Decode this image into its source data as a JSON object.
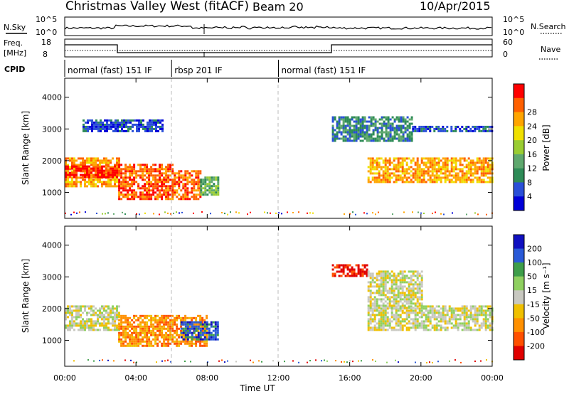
{
  "header": {
    "title": "Christmas Valley West (fitACF)",
    "beam": "Beam 20",
    "date": "10/Apr/2015"
  },
  "strips": {
    "nsky": {
      "label": "N.Sky",
      "tick_top": "10^5",
      "tick_bottom": "10^0"
    },
    "nsearch": {
      "label": "N.Search",
      "tick_top": "10^5",
      "tick_bottom": "10^0"
    },
    "freq": {
      "label1": "Freq.",
      "label2": "[MHz]",
      "tick_top": "18",
      "tick_bottom": "8"
    },
    "nave": {
      "label": "Nave",
      "tick_top": "60",
      "tick_bottom": "0"
    },
    "cpid": {
      "label": "CPID"
    }
  },
  "cpid_segments": [
    {
      "start_hour": 0.0,
      "end_hour": 6.0,
      "label": "normal (fast) 151 IF"
    },
    {
      "start_hour": 6.0,
      "end_hour": 12.0,
      "label": "rbsp 201 IF"
    },
    {
      "start_hour": 12.0,
      "end_hour": 24.0,
      "label": "normal (fast) 151 IF"
    }
  ],
  "power_colorbar": {
    "label": "Power [dB]",
    "ticks": [
      "4",
      "8",
      "12",
      "16",
      "20",
      "24",
      "28"
    ],
    "colors": [
      "#0000d8",
      "#2a4fd8",
      "#2e8b57",
      "#5fa86e",
      "#9acd32",
      "#f0e000",
      "#ffa500",
      "#ff6000",
      "#ff0000"
    ]
  },
  "velocity_colorbar": {
    "label": "Velocity [m s⁻¹]",
    "ticks": [
      "200",
      "100",
      "50",
      "15",
      "-15",
      "-50",
      "-100",
      "-200"
    ],
    "colors": [
      "#1010c0",
      "#2a5ad8",
      "#3e9e4a",
      "#8fd060",
      "#c8c8c0",
      "#f0c000",
      "#ff9000",
      "#ff5000",
      "#e00000"
    ]
  },
  "chart_data": [
    {
      "type": "heatmap",
      "name": "Power",
      "ylabel": "Slant Range [km]",
      "xlabel": "Time UT",
      "x_ticks": [
        "00:00",
        "04:00",
        "08:00",
        "12:00",
        "16:00",
        "20:00",
        "00:00"
      ],
      "y_ticks": [
        "1000",
        "2000",
        "3000",
        "4000"
      ],
      "xlim_hours": [
        0,
        24
      ],
      "ylim_km": [
        180,
        4600
      ],
      "bands": [
        {
          "t0": 0.0,
          "t1": 3.0,
          "r0": 1200,
          "r1": 2100,
          "level": 6
        },
        {
          "t0": 0.0,
          "t1": 3.0,
          "r0": 1450,
          "r1": 1850,
          "level": 8
        },
        {
          "t0": 3.0,
          "t1": 6.0,
          "r0": 800,
          "r1": 1900,
          "level": 7
        },
        {
          "t0": 6.0,
          "t1": 7.6,
          "r0": 800,
          "r1": 1700,
          "level": 7
        },
        {
          "t0": 7.6,
          "t1": 8.6,
          "r0": 900,
          "r1": 1500,
          "level": 3
        },
        {
          "t0": 1.0,
          "t1": 5.5,
          "r0": 2900,
          "r1": 3300,
          "level": 1
        },
        {
          "t0": 17.0,
          "t1": 24.0,
          "r0": 1300,
          "r1": 2100,
          "level": 6
        },
        {
          "t0": 15.0,
          "t1": 19.5,
          "r0": 2600,
          "r1": 3400,
          "level": 2
        },
        {
          "t0": 19.5,
          "t1": 24.0,
          "r0": 2900,
          "r1": 3100,
          "level": 1
        }
      ]
    },
    {
      "type": "heatmap",
      "name": "Velocity",
      "ylabel": "Slant Range [km]",
      "xlabel": "Time UT",
      "x_ticks": [
        "00:00",
        "04:00",
        "08:00",
        "12:00",
        "16:00",
        "20:00",
        "00:00"
      ],
      "y_ticks": [
        "1000",
        "2000",
        "3000",
        "4000"
      ],
      "xlim_hours": [
        0,
        24
      ],
      "ylim_km": [
        180,
        4600
      ],
      "bands": [
        {
          "t0": 0.0,
          "t1": 3.0,
          "r0": 1300,
          "r1": 2100,
          "level": 4
        },
        {
          "t0": 3.0,
          "t1": 8.0,
          "r0": 800,
          "r1": 1800,
          "level": 6
        },
        {
          "t0": 6.5,
          "t1": 8.6,
          "r0": 1000,
          "r1": 1600,
          "level": 1
        },
        {
          "t0": 15.0,
          "t1": 17.0,
          "r0": 3000,
          "r1": 3400,
          "level": 8
        },
        {
          "t0": 17.0,
          "t1": 24.0,
          "r0": 1300,
          "r1": 2100,
          "level": 4
        },
        {
          "t0": 17.0,
          "t1": 20.0,
          "r0": 2000,
          "r1": 3200,
          "level": 4
        }
      ]
    }
  ]
}
